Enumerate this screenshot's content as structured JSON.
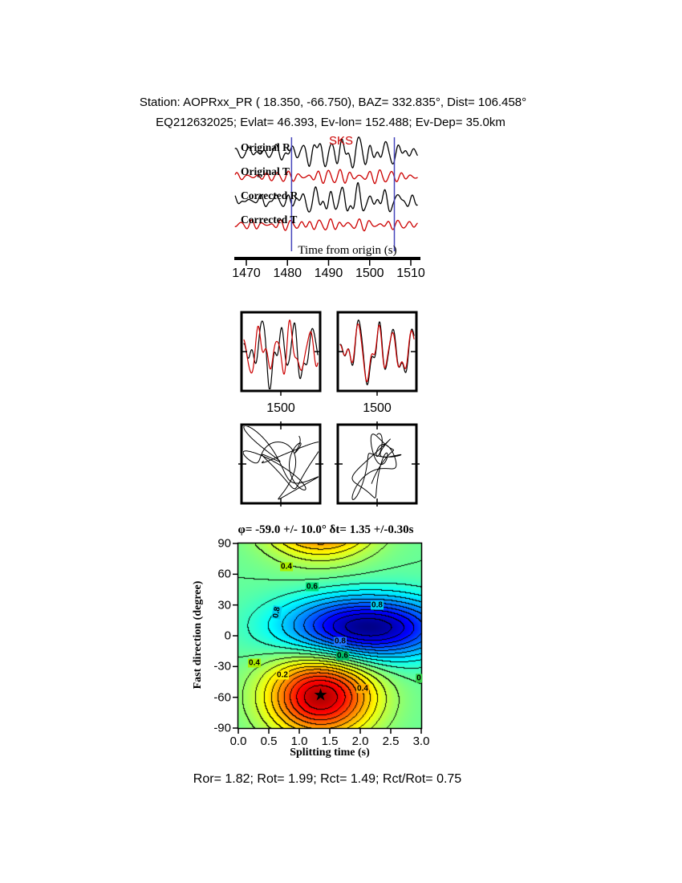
{
  "header": {
    "line1": "Station: AOPRxx_PR (  18.350,  -66.750), BAZ=  332.835°, Dist=  106.458°",
    "line2": "EQ212632025; Evlat=  46.393, Ev-lon= 152.488; Ev-Dep= 35.0km"
  },
  "footer": {
    "results": "Ror= 1.82; Rot= 1.99; Rct= 1.49; Rct/Rot= 0.75"
  },
  "chart_data": [
    {
      "id": "waveforms",
      "type": "line",
      "xlabel": "Time from origin (s)",
      "x_range": [
        1467,
        1512
      ],
      "x_ticks": [
        1470,
        1480,
        1490,
        1500,
        1510
      ],
      "phase_label": "SKS",
      "phase_color": "#cc0000",
      "window": [
        1481.0,
        1506.0
      ],
      "window_color": "#4444bb",
      "traces": [
        {
          "label": "Original R",
          "color": "#000000",
          "amp": 12,
          "base": 0.3,
          "env_center": 1494,
          "env_width": 13,
          "components": [
            [
              0.3,
              1.0,
              0.5
            ],
            [
              0.44,
              0.6,
              2.2
            ],
            [
              0.19,
              0.5,
              4.1
            ],
            [
              0.58,
              0.3,
              1.2
            ]
          ]
        },
        {
          "label": "Original T",
          "color": "#cc0000",
          "amp": 6,
          "base": 0.5,
          "env_center": 1495,
          "env_width": 16,
          "components": [
            [
              0.4,
              1.0,
              1.3
            ],
            [
              0.32,
              0.5,
              3.0
            ],
            [
              0.55,
              0.25,
              0.4
            ]
          ]
        },
        {
          "label": "Corrected R",
          "color": "#000000",
          "amp": 11,
          "base": 0.3,
          "env_center": 1494,
          "env_width": 13,
          "components": [
            [
              0.3,
              1.0,
              1.1
            ],
            [
              0.46,
              0.6,
              2.9
            ],
            [
              0.2,
              0.5,
              4.8
            ],
            [
              0.6,
              0.3,
              0.2
            ]
          ]
        },
        {
          "label": "Corrected T",
          "color": "#cc0000",
          "amp": 4.5,
          "base": 0.6,
          "env_center": 1490,
          "env_width": 18,
          "components": [
            [
              0.42,
              1.0,
              2.0
            ],
            [
              0.31,
              0.6,
              0.7
            ],
            [
              0.57,
              0.3,
              3.5
            ]
          ]
        }
      ]
    },
    {
      "id": "window-pair",
      "type": "line",
      "boxes": [
        {
          "tick_label": "1500",
          "traces": [
            {
              "color": "#000000",
              "amp": 26,
              "components": [
                [
                  4.5,
                  1.0,
                  0.8
                ],
                [
                  7.2,
                  0.55,
                  2.5
                ],
                [
                  2.6,
                  0.6,
                  4.6
                ],
                [
                  10.0,
                  0.25,
                  1.3
                ]
              ]
            },
            {
              "color": "#cc0000",
              "amp": 21,
              "components": [
                [
                  4.5,
                  1.0,
                  2.0
                ],
                [
                  6.8,
                  0.6,
                  0.6
                ],
                [
                  2.9,
                  0.55,
                  3.4
                ],
                [
                  9.5,
                  0.3,
                  2.6
                ]
              ]
            }
          ]
        },
        {
          "tick_label": "1500",
          "traces": [
            {
              "color": "#000000",
              "amp": 26,
              "components": [
                [
                  4.2,
                  1.0,
                  1.0
                ],
                [
                  6.9,
                  0.5,
                  2.9
                ],
                [
                  2.4,
                  0.55,
                  4.9
                ],
                [
                  9.6,
                  0.25,
                  0.9
                ]
              ]
            },
            {
              "color": "#cc0000",
              "amp": 23,
              "components": [
                [
                  4.2,
                  1.0,
                  1.18
                ],
                [
                  6.9,
                  0.5,
                  3.08
                ],
                [
                  2.4,
                  0.55,
                  5.08
                ],
                [
                  9.6,
                  0.25,
                  1.08
                ]
              ]
            }
          ]
        }
      ]
    },
    {
      "id": "particle-motion",
      "type": "line",
      "boxes": [
        {
          "angle": 0,
          "scale": 34,
          "tmax": 12,
          "x_comps": [
            [
              0.21,
              0.9,
              0.0
            ],
            [
              0.47,
              0.5,
              1.1
            ],
            [
              0.8,
              0.3,
              2.3
            ]
          ],
          "y_comps": [
            [
              0.26,
              0.75,
              1.25
            ],
            [
              0.62,
              0.5,
              2.8
            ],
            [
              0.13,
              0.35,
              0.4
            ]
          ]
        },
        {
          "angle": 63,
          "scale": 30,
          "tmax": 12,
          "x_comps": [
            [
              0.21,
              1.0,
              0.4
            ],
            [
              0.44,
              0.5,
              2.0
            ],
            [
              0.78,
              0.28,
              1.0
            ]
          ],
          "y_comps": [
            [
              0.3,
              0.45,
              0.9
            ],
            [
              0.66,
              0.3,
              2.4
            ]
          ]
        }
      ]
    },
    {
      "id": "error-surface",
      "type": "heatmap",
      "title": "φ= -59.0 +/- 10.0°  δt= 1.35 +/-0.30s",
      "xlabel": "Splitting time (s)",
      "ylabel": "Fast direction (degree)",
      "x_range": [
        0.0,
        3.0
      ],
      "y_range": [
        -90,
        90
      ],
      "x_ticks": [
        "0.0",
        "0.5",
        "1.0",
        "1.5",
        "2.0",
        "2.5",
        "3.0"
      ],
      "y_ticks": [
        90,
        60,
        30,
        0,
        -30,
        -60,
        -90
      ],
      "best": {
        "phi": -59.0,
        "phi_err": 10.0,
        "dt": 1.35,
        "dt_err": 0.3
      },
      "surface": {
        "base": 0.55,
        "min": {
          "x": 1.35,
          "phi": -59,
          "xw": 0.85,
          "pw": 0.42,
          "depth": 0.5
        },
        "max": {
          "x": 2.1,
          "phi": 8,
          "xw": 1.3,
          "pw": 0.33,
          "height": 0.5
        }
      },
      "contour_interval": 0.05,
      "contour_labels": [
        {
          "text": "0.4",
          "x": 357,
          "y": 706,
          "bg": "#aaee00",
          "rot": 0
        },
        {
          "text": "0.6",
          "x": 389,
          "y": 731,
          "bg": "#00dd77",
          "rot": 0
        },
        {
          "text": "0.8",
          "x": 345,
          "y": 763,
          "bg": "#00ccee",
          "rot": -80
        },
        {
          "text": "0.8",
          "x": 470,
          "y": 754,
          "bg": "#00ccee",
          "rot": 0
        },
        {
          "text": "0.8",
          "x": 424,
          "y": 799,
          "bg": "#2277ff",
          "rot": 0
        },
        {
          "text": "0.6",
          "x": 427,
          "y": 817,
          "bg": "#00bb66",
          "rot": 0
        },
        {
          "text": "0.4",
          "x": 317,
          "y": 826,
          "bg": "#aaee00",
          "rot": 0
        },
        {
          "text": "0.2",
          "x": 352,
          "y": 841,
          "bg": "#ffee00",
          "rot": 0
        },
        {
          "text": "0.4",
          "x": 452,
          "y": 858,
          "bg": "#ffaa00",
          "rot": 0
        },
        {
          "text": "0",
          "x": 522,
          "y": 845,
          "bg": "#33cc44",
          "rot": 0
        }
      ],
      "star_symbol": "★"
    }
  ]
}
